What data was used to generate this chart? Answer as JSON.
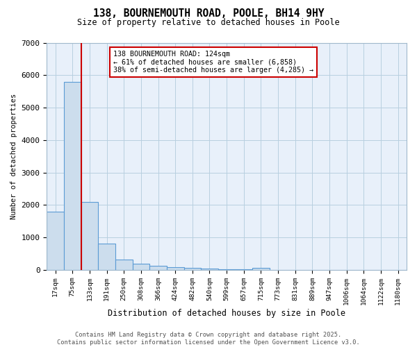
{
  "title": "138, BOURNEMOUTH ROAD, POOLE, BH14 9HY",
  "subtitle": "Size of property relative to detached houses in Poole",
  "xlabel": "Distribution of detached houses by size in Poole",
  "ylabel": "Number of detached properties",
  "bar_color": "#ccdded",
  "bar_edge_color": "#5b9bd5",
  "grid_color": "#b8cfe0",
  "background_color": "#e8f0fa",
  "vline_color": "#cc0000",
  "annotation_box_edgecolor": "#cc0000",
  "annotation_line1": "138 BOURNEMOUTH ROAD: 124sqm",
  "annotation_line2": "← 61% of detached houses are smaller (6,858)",
  "annotation_line3": "38% of semi-detached houses are larger (4,285) →",
  "tick_labels": [
    "17sqm",
    "75sqm",
    "133sqm",
    "191sqm",
    "250sqm",
    "308sqm",
    "366sqm",
    "424sqm",
    "482sqm",
    "540sqm",
    "599sqm",
    "657sqm",
    "715sqm",
    "773sqm",
    "831sqm",
    "889sqm",
    "947sqm",
    "1006sqm",
    "1064sqm",
    "1122sqm",
    "1180sqm"
  ],
  "values": [
    1800,
    5800,
    2100,
    820,
    330,
    190,
    120,
    80,
    60,
    35,
    20,
    15,
    60,
    0,
    0,
    0,
    0,
    0,
    0,
    0,
    0
  ],
  "vline_bin_index": 2,
  "ylim": [
    0,
    7000
  ],
  "yticks": [
    0,
    1000,
    2000,
    3000,
    4000,
    5000,
    6000,
    7000
  ],
  "footer_text": "Contains HM Land Registry data © Crown copyright and database right 2025.\nContains public sector information licensed under the Open Government Licence v3.0.",
  "figsize": [
    6.0,
    5.0
  ],
  "dpi": 100
}
